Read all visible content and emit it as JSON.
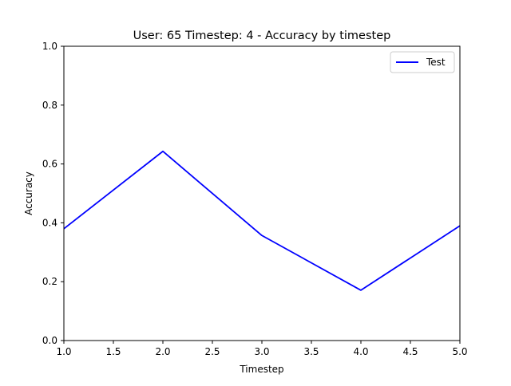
{
  "chart_data": {
    "type": "line",
    "title": "User: 65 Timestep: 4 - Accuracy by timestep",
    "xlabel": "Timestep",
    "ylabel": "Accuracy",
    "xlim": [
      1.0,
      5.0
    ],
    "ylim": [
      0.0,
      1.0
    ],
    "xticks": [
      "1.0",
      "1.5",
      "2.0",
      "2.5",
      "3.0",
      "3.5",
      "4.0",
      "4.5",
      "5.0"
    ],
    "yticks": [
      "0.0",
      "0.2",
      "0.4",
      "0.6",
      "0.8",
      "1.0"
    ],
    "grid": false,
    "legend_position": "top-right",
    "series": [
      {
        "name": "Test",
        "color": "#0000ff",
        "x": [
          1,
          2,
          3,
          4,
          5
        ],
        "y": [
          0.38,
          0.643,
          0.357,
          0.171,
          0.39
        ]
      }
    ]
  }
}
